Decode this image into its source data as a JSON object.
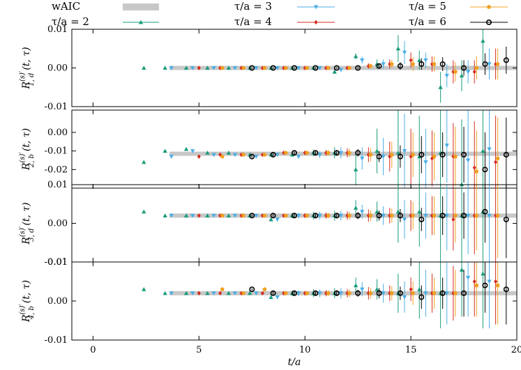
{
  "chart_data": {
    "type": "scatter",
    "xlabel": "t/a",
    "x_ticks": [
      0,
      5,
      10,
      15,
      20
    ],
    "x_tick_labels": [
      "0",
      "5",
      "10",
      "15",
      "20"
    ],
    "xlim": [
      -1,
      20
    ],
    "legend": {
      "placement": "top",
      "entries": [
        {
          "key": "wAIC",
          "label": "wAIC",
          "color": "#c8c8c8",
          "kind": "band"
        },
        {
          "key": "tau2",
          "label": "τ/a = 2",
          "color": "#1a9c7c",
          "marker": "triangle-up"
        },
        {
          "key": "tau3",
          "label": "τ/a = 3",
          "color": "#4aaee6",
          "marker": "triangle-down"
        },
        {
          "key": "tau4",
          "label": "τ/a = 4",
          "color": "#d62a1e",
          "marker": "diamond"
        },
        {
          "key": "tau5",
          "label": "τ/a = 5",
          "color": "#f0a020",
          "marker": "pentagon"
        },
        {
          "key": "tau6",
          "label": "τ/a = 6",
          "color": "#000000",
          "marker": "circle-open"
        }
      ]
    },
    "panels": [
      {
        "ylabel_main": "R",
        "ylabel_sup": "(s)′",
        "ylabel_sub": "1, d",
        "ylabel_args": "(t, τ)",
        "ylim": [
          -0.01,
          0.01
        ],
        "y_ticks": [
          0.01,
          0.0,
          -0.01
        ],
        "y_tick_labels": [
          "0.01",
          "0.00",
          "-0.01"
        ],
        "waic": 0.0
      },
      {
        "ylabel_main": "R",
        "ylabel_sup": "(s)′",
        "ylabel_sub": "2, b",
        "ylabel_args": "(t, τ)",
        "ylim": [
          -0.03,
          0.012
        ],
        "y_ticks": [
          0.0,
          -0.01,
          -0.02
        ],
        "y_tick_labels": [
          "0.00",
          "-0.01",
          "-0.02"
        ],
        "waic": -0.0115
      },
      {
        "ylabel_main": "R",
        "ylabel_sup": "(s)′",
        "ylabel_sub": "3, d",
        "ylabel_args": "(t, τ)",
        "ylim": [
          -0.01,
          0.01
        ],
        "y_ticks": [
          0.01,
          0.0,
          -0.01
        ],
        "y_tick_labels": [
          "0.01",
          "0.00",
          "-0.01"
        ],
        "waic": 0.002
      },
      {
        "ylabel_main": "R",
        "ylabel_sup": "(s)′",
        "ylabel_sub": "4, b",
        "ylabel_args": "(t, τ)",
        "ylim": [
          -0.01,
          0.01
        ],
        "y_ticks": [
          0.01,
          0.0,
          -0.01
        ],
        "y_tick_labels": [
          "0.01",
          "0.00",
          "-0.01"
        ],
        "waic": 0.002
      }
    ],
    "series": [
      {
        "name": "τ/a = 2",
        "key": "tau2",
        "tau": 2,
        "x": [
          3,
          4,
          5,
          6,
          7,
          8,
          9,
          10,
          11,
          12,
          13,
          14,
          15,
          16,
          17,
          18,
          19
        ],
        "panels": [
          {
            "y": [
              0.0,
              0.0,
              0.0,
              0.0,
              0.0,
              0.0,
              0.0,
              0.0,
              0.0,
              -0.001,
              0.003,
              0.001,
              0.005,
              0.002,
              -0.005,
              -0.002,
              0.007
            ],
            "err": [
              0.0002,
              0.0002,
              0.0002,
              0.0002,
              0.0002,
              0.0002,
              0.0002,
              0.0003,
              0.0004,
              0.0005,
              0.0008,
              0.0012,
              0.0035,
              0.0025,
              0.004,
              0.004,
              0.006
            ]
          },
          {
            "y": [
              -0.016,
              -0.01,
              -0.009,
              -0.011,
              -0.011,
              -0.012,
              -0.012,
              -0.012,
              -0.011,
              -0.011,
              -0.02,
              -0.01,
              -0.011,
              -0.013,
              -0.011,
              -0.028,
              -0.01
            ],
            "err": [
              0.0004,
              0.0005,
              0.0005,
              0.0006,
              0.0007,
              0.0008,
              0.001,
              0.0012,
              0.0018,
              0.003,
              0.0085,
              0.012,
              0.025,
              0.022,
              0.028,
              0.035,
              0.04
            ]
          },
          {
            "y": [
              0.003,
              0.002,
              0.002,
              0.002,
              0.002,
              0.002,
              0.001,
              0.002,
              0.002,
              0.002,
              0.004,
              0.003,
              0.003,
              0.003,
              0.002,
              0.002,
              0.003
            ],
            "err": [
              0.0002,
              0.0003,
              0.0003,
              0.0003,
              0.0003,
              0.0004,
              0.0005,
              0.0007,
              0.001,
              0.0013,
              0.002,
              0.0026,
              0.008,
              0.009,
              0.012,
              0.012,
              0.014
            ]
          },
          {
            "y": [
              0.003,
              0.002,
              0.002,
              0.002,
              0.002,
              0.002,
              0.001,
              0.002,
              0.002,
              0.002,
              0.004,
              0.003,
              0.002,
              0.003,
              0.002,
              0.008,
              0.007
            ],
            "err": [
              0.0002,
              0.0003,
              0.0003,
              0.0003,
              0.0003,
              0.0004,
              0.0005,
              0.0007,
              0.001,
              0.0013,
              0.002,
              0.0026,
              0.005,
              0.0075,
              0.009,
              0.012,
              0.014
            ]
          }
        ]
      },
      {
        "name": "τ/a = 3",
        "key": "tau3",
        "tau": 3,
        "x": [
          4,
          5,
          6,
          7,
          8,
          9,
          10,
          11,
          12,
          13,
          14,
          15,
          16,
          17,
          18,
          19
        ],
        "panels": [
          {
            "y": [
              0.0,
              0.0,
              0.0,
              0.0,
              0.0,
              0.0,
              0.0,
              0.0,
              -0.0005,
              0.002,
              0.001,
              0.004,
              0.002,
              -0.002,
              -0.001,
              0.001
            ],
            "err": [
              0.0002,
              0.0002,
              0.0002,
              0.0002,
              0.0002,
              0.0002,
              0.0003,
              0.0004,
              0.0005,
              0.0009,
              0.0012,
              0.003,
              0.002,
              0.003,
              0.003,
              0.004
            ]
          },
          {
            "y": [
              -0.013,
              -0.01,
              -0.012,
              -0.012,
              -0.013,
              -0.012,
              -0.013,
              -0.012,
              -0.011,
              -0.014,
              -0.013,
              -0.01,
              -0.016,
              -0.007,
              -0.015,
              -0.009
            ],
            "err": [
              0.0005,
              0.0005,
              0.0006,
              0.0007,
              0.0008,
              0.001,
              0.0012,
              0.0018,
              0.003,
              0.006,
              0.01,
              0.02,
              0.018,
              0.02,
              0.03,
              0.03
            ]
          },
          {
            "y": [
              0.002,
              0.002,
              0.002,
              0.002,
              0.002,
              0.001,
              0.002,
              0.002,
              0.002,
              0.003,
              0.002,
              0.001,
              0.002,
              0.002,
              0.002,
              0.002
            ],
            "err": [
              0.0003,
              0.0003,
              0.0003,
              0.0003,
              0.0004,
              0.0005,
              0.0007,
              0.001,
              0.0013,
              0.0018,
              0.0024,
              0.005,
              0.006,
              0.009,
              0.01,
              0.012
            ]
          },
          {
            "y": [
              0.002,
              0.002,
              0.002,
              0.002,
              0.002,
              0.001,
              0.002,
              0.002,
              0.002,
              0.003,
              0.002,
              0.001,
              0.002,
              0.002,
              0.006,
              0.005
            ],
            "err": [
              0.0003,
              0.0003,
              0.0003,
              0.0003,
              0.0004,
              0.0005,
              0.0007,
              0.001,
              0.0013,
              0.0018,
              0.0024,
              0.004,
              0.006,
              0.008,
              0.01,
              0.012
            ]
          }
        ]
      },
      {
        "name": "τ/a = 4",
        "key": "tau4",
        "tau": 4,
        "x": [
          5,
          6,
          7,
          8,
          9,
          10,
          11,
          12,
          13,
          14,
          15,
          16,
          17,
          18,
          19
        ],
        "panels": [
          {
            "y": [
              0.0,
              0.0,
              0.0,
              0.0,
              0.0,
              0.0,
              0.0,
              0.0,
              0.0005,
              0.001,
              0.002,
              0.001,
              -0.001,
              -0.001,
              0.001
            ],
            "err": [
              0.0002,
              0.0002,
              0.0002,
              0.0002,
              0.0002,
              0.0003,
              0.0003,
              0.0004,
              0.0007,
              0.0012,
              0.002,
              0.002,
              0.003,
              0.003,
              0.004
            ]
          },
          {
            "y": [
              -0.013,
              -0.012,
              -0.012,
              -0.012,
              -0.011,
              -0.011,
              -0.011,
              -0.011,
              -0.012,
              -0.013,
              -0.013,
              -0.014,
              -0.013,
              -0.019,
              -0.016
            ],
            "err": [
              0.0005,
              0.0006,
              0.0007,
              0.0008,
              0.001,
              0.0012,
              0.0016,
              0.0025,
              0.004,
              0.008,
              0.015,
              0.015,
              0.018,
              0.025,
              0.025
            ]
          },
          {
            "y": [
              0.002,
              0.002,
              0.002,
              0.002,
              0.002,
              0.002,
              0.002,
              0.002,
              0.002,
              0.002,
              0.002,
              0.002,
              0.001,
              0.002,
              0.002
            ],
            "err": [
              0.0003,
              0.0003,
              0.0003,
              0.0004,
              0.0005,
              0.0006,
              0.0008,
              0.0011,
              0.0016,
              0.002,
              0.004,
              0.005,
              0.008,
              0.01,
              0.012
            ]
          },
          {
            "y": [
              0.002,
              0.002,
              0.002,
              0.002,
              0.002,
              0.002,
              0.002,
              0.002,
              0.002,
              0.002,
              0.003,
              0.002,
              0.002,
              0.005,
              0.005
            ],
            "err": [
              0.0003,
              0.0003,
              0.0003,
              0.0004,
              0.0005,
              0.0006,
              0.0008,
              0.0011,
              0.0016,
              0.002,
              0.003,
              0.005,
              0.007,
              0.009,
              0.011
            ]
          }
        ]
      },
      {
        "name": "τ/a = 5",
        "key": "tau5",
        "tau": 5,
        "x": [
          6,
          7,
          8,
          9,
          10,
          11,
          12,
          13,
          14,
          15,
          16,
          17,
          18,
          19
        ],
        "panels": [
          {
            "y": [
              0.0,
              0.0,
              0.0,
              0.0,
              0.0,
              0.0,
              0.0,
              0.0005,
              0.001,
              0.001,
              0.001,
              -0.001,
              0.0,
              0.001
            ],
            "err": [
              0.0002,
              0.0002,
              0.0002,
              0.0002,
              0.0002,
              0.0003,
              0.0004,
              0.0006,
              0.0011,
              0.0018,
              0.002,
              0.0025,
              0.003,
              0.004
            ]
          },
          {
            "y": [
              -0.013,
              -0.012,
              -0.012,
              -0.011,
              -0.011,
              -0.011,
              -0.011,
              -0.012,
              -0.012,
              -0.012,
              -0.013,
              -0.013,
              -0.021,
              -0.014
            ],
            "err": [
              0.0006,
              0.0007,
              0.0008,
              0.001,
              0.0012,
              0.0015,
              0.0022,
              0.0035,
              0.007,
              0.012,
              0.013,
              0.016,
              0.022,
              0.022
            ]
          },
          {
            "y": [
              0.002,
              0.002,
              0.002,
              0.002,
              0.002,
              0.002,
              0.002,
              0.002,
              0.002,
              0.002,
              0.002,
              0.002,
              0.002,
              0.002
            ],
            "err": [
              0.0003,
              0.0003,
              0.0004,
              0.0005,
              0.0006,
              0.0007,
              0.001,
              0.0014,
              0.0018,
              0.0035,
              0.005,
              0.007,
              0.009,
              0.011
            ]
          },
          {
            "y": [
              0.003,
              0.002,
              0.003,
              0.002,
              0.002,
              0.002,
              0.002,
              0.002,
              0.002,
              0.002,
              0.002,
              0.002,
              0.004,
              0.004
            ],
            "err": [
              0.0003,
              0.0003,
              0.0004,
              0.0005,
              0.0006,
              0.0007,
              0.001,
              0.0014,
              0.0018,
              0.003,
              0.004,
              0.006,
              0.008,
              0.01
            ]
          }
        ]
      },
      {
        "name": "τ/a = 6",
        "key": "tau6",
        "tau": 6,
        "x": [
          7,
          8,
          9,
          10,
          11,
          12,
          13,
          14,
          15,
          16,
          17,
          18,
          19
        ],
        "panels": [
          {
            "y": [
              0.0,
              0.0,
              0.0,
              0.0,
              0.0,
              0.0,
              0.0005,
              0.0005,
              0.001,
              0.001,
              0.0,
              0.001,
              0.002
            ],
            "err": [
              0.0002,
              0.0002,
              0.0002,
              0.0002,
              0.0002,
              0.0003,
              0.0005,
              0.001,
              0.0015,
              0.0018,
              0.002,
              0.0028,
              0.0035
            ]
          },
          {
            "y": [
              -0.013,
              -0.012,
              -0.011,
              -0.011,
              -0.011,
              -0.011,
              -0.013,
              -0.013,
              -0.012,
              -0.012,
              -0.012,
              -0.02,
              -0.012
            ],
            "err": [
              0.0007,
              0.0008,
              0.001,
              0.0012,
              0.0015,
              0.002,
              0.003,
              0.006,
              0.01,
              0.012,
              0.015,
              0.02,
              0.02
            ]
          },
          {
            "y": [
              0.002,
              0.002,
              0.002,
              0.002,
              0.002,
              0.002,
              0.002,
              0.002,
              0.001,
              0.002,
              0.002,
              0.003,
              0.001
            ],
            "err": [
              0.0003,
              0.0004,
              0.0005,
              0.0006,
              0.0007,
              0.0009,
              0.0013,
              0.0017,
              0.003,
              0.005,
              0.006,
              0.008,
              0.01
            ]
          },
          {
            "y": [
              0.003,
              0.002,
              0.002,
              0.002,
              0.002,
              0.002,
              0.002,
              0.002,
              0.001,
              0.002,
              0.002,
              0.004,
              0.003
            ],
            "err": [
              0.0003,
              0.0004,
              0.0005,
              0.0006,
              0.0007,
              0.0009,
              0.0013,
              0.0017,
              0.003,
              0.004,
              0.006,
              0.007,
              0.009
            ]
          }
        ]
      }
    ]
  }
}
